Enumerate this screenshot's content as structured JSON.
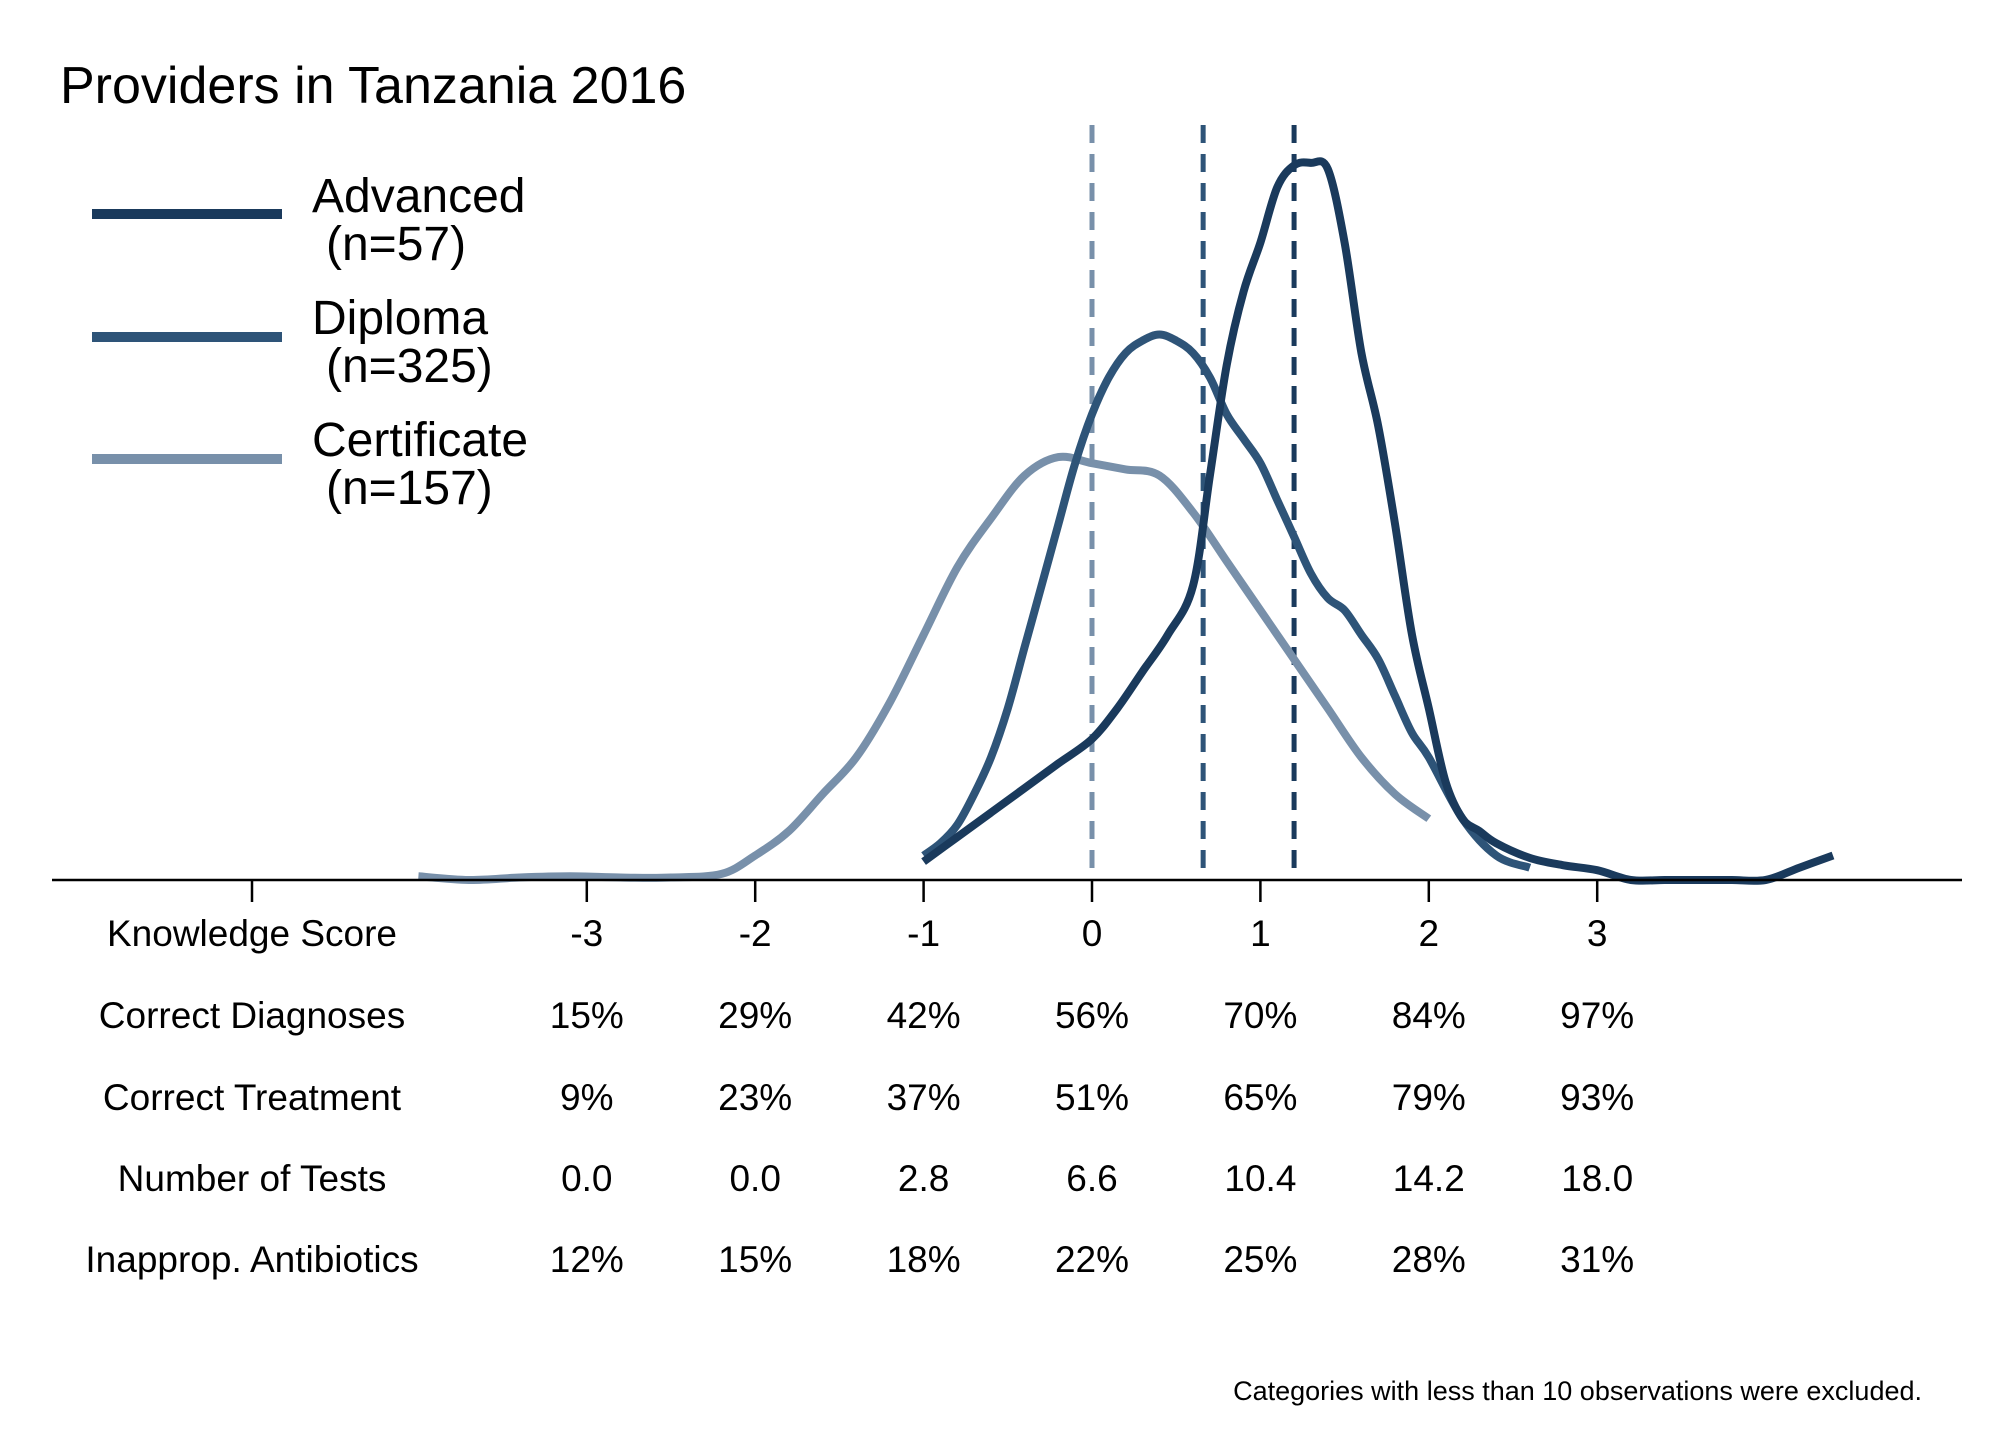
{
  "chart_data": {
    "type": "line",
    "title": "Providers in Tanzania 2016",
    "footnote": "Categories with less than 10 observations were excluded.",
    "xlim": [
      -4.0,
      4.5
    ],
    "ylim": [
      0,
      0.62
    ],
    "legend_position": "top-left",
    "series": [
      {
        "name": "Advanced",
        "n_label": "(n=57)",
        "color": "#1a3a5c",
        "mean": 1.2,
        "x": [
          -1.0,
          -0.8,
          -0.6,
          -0.4,
          -0.2,
          0.0,
          0.15,
          0.3,
          0.45,
          0.6,
          0.7,
          0.8,
          0.9,
          1.0,
          1.1,
          1.2,
          1.3,
          1.4,
          1.5,
          1.6,
          1.7,
          1.8,
          1.9,
          2.0,
          2.1,
          2.2,
          2.3,
          2.4,
          2.6,
          2.8,
          3.0,
          3.2,
          3.4,
          3.6,
          3.8,
          4.0,
          4.2,
          4.4
        ],
        "y": [
          0.015,
          0.035,
          0.055,
          0.075,
          0.095,
          0.115,
          0.14,
          0.17,
          0.2,
          0.24,
          0.33,
          0.42,
          0.48,
          0.52,
          0.565,
          0.583,
          0.585,
          0.58,
          0.52,
          0.43,
          0.37,
          0.29,
          0.2,
          0.14,
          0.08,
          0.05,
          0.04,
          0.03,
          0.018,
          0.012,
          0.008,
          0.0,
          0.0,
          0.0,
          0.0,
          0.0,
          0.01,
          0.02
        ]
      },
      {
        "name": "Diploma",
        "n_label": "(n=325)",
        "color": "#2e5478",
        "mean": 0.66,
        "x": [
          -1.0,
          -0.9,
          -0.8,
          -0.7,
          -0.6,
          -0.5,
          -0.4,
          -0.3,
          -0.2,
          -0.1,
          0.0,
          0.1,
          0.2,
          0.3,
          0.4,
          0.5,
          0.6,
          0.7,
          0.8,
          0.9,
          1.0,
          1.1,
          1.2,
          1.3,
          1.4,
          1.5,
          1.6,
          1.7,
          1.8,
          1.9,
          2.0,
          2.2,
          2.4,
          2.6
        ],
        "y": [
          0.02,
          0.03,
          0.045,
          0.07,
          0.1,
          0.14,
          0.19,
          0.24,
          0.29,
          0.34,
          0.38,
          0.41,
          0.43,
          0.44,
          0.445,
          0.44,
          0.43,
          0.41,
          0.38,
          0.36,
          0.34,
          0.31,
          0.28,
          0.25,
          0.23,
          0.22,
          0.2,
          0.18,
          0.15,
          0.12,
          0.1,
          0.05,
          0.02,
          0.01
        ]
      },
      {
        "name": "Certificate",
        "n_label": "(n=157)",
        "color": "#7890aa",
        "mean": 0.0,
        "x": [
          -4.0,
          -3.7,
          -3.4,
          -3.1,
          -2.8,
          -2.5,
          -2.2,
          -2.0,
          -1.8,
          -1.6,
          -1.4,
          -1.2,
          -1.0,
          -0.8,
          -0.6,
          -0.4,
          -0.2,
          0.0,
          0.2,
          0.4,
          0.6,
          0.8,
          1.0,
          1.2,
          1.4,
          1.6,
          1.8,
          2.0
        ],
        "y": [
          0.003,
          0.0,
          0.002,
          0.003,
          0.002,
          0.002,
          0.005,
          0.02,
          0.04,
          0.07,
          0.1,
          0.145,
          0.2,
          0.255,
          0.295,
          0.33,
          0.345,
          0.34,
          0.335,
          0.33,
          0.3,
          0.26,
          0.22,
          0.18,
          0.14,
          0.1,
          0.07,
          0.05
        ]
      }
    ],
    "row_labels": [
      "Knowledge Score",
      "Correct Diagnoses",
      "Correct Treatment",
      "Number of Tests",
      "Inapprop. Antibiotics"
    ],
    "columns": [
      {
        "score": "-3",
        "diagnoses": "15%",
        "treatment": "9%",
        "tests": "0.0",
        "antibiotics": "12%"
      },
      {
        "score": "-2",
        "diagnoses": "29%",
        "treatment": "23%",
        "tests": "0.0",
        "antibiotics": "15%"
      },
      {
        "score": "-1",
        "diagnoses": "42%",
        "treatment": "37%",
        "tests": "2.8",
        "antibiotics": "18%"
      },
      {
        "score": "0",
        "diagnoses": "56%",
        "treatment": "51%",
        "tests": "6.6",
        "antibiotics": "22%"
      },
      {
        "score": "1",
        "diagnoses": "70%",
        "treatment": "65%",
        "tests": "10.4",
        "antibiotics": "25%"
      },
      {
        "score": "2",
        "diagnoses": "84%",
        "treatment": "79%",
        "tests": "14.2",
        "antibiotics": "28%"
      },
      {
        "score": "3",
        "diagnoses": "97%",
        "treatment": "93%",
        "tests": "18.0",
        "antibiotics": "31%"
      }
    ]
  }
}
